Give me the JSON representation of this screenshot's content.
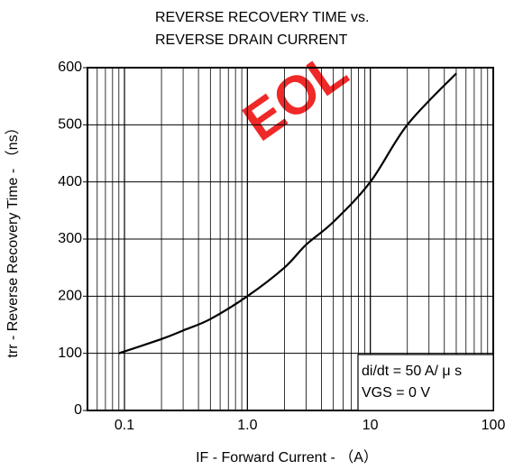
{
  "chart_data": {
    "type": "line",
    "title": "REVERSE RECOVERY TIME vs.",
    "subtitle": "REVERSE DRAIN CURRENT",
    "x_label": "IF - Forward Current - （A）",
    "y_label": "trr - Reverse Recovery Time - （ns）",
    "annotations": [
      "di/dt = 50 A/ μ s",
      "VGS = 0 V"
    ],
    "watermark": "EOL",
    "x": [
      0.09,
      0.2,
      0.3,
      0.5,
      1,
      2,
      3,
      5,
      10,
      20,
      50
    ],
    "series": [
      {
        "name": "trr",
        "color": "#000000",
        "values": [
          100,
          125,
          140,
          160,
          200,
          250,
          290,
          330,
          400,
          500,
          590
        ]
      }
    ],
    "xlog": true,
    "xlim": [
      0.05,
      100
    ],
    "xticks": [
      0.1,
      {
        "value": 1,
        "label": "1.0"
      },
      10,
      100
    ],
    "ylim": [
      0,
      600
    ],
    "yticks": [
      0,
      100,
      200,
      300,
      400,
      500,
      600
    ],
    "grid": true,
    "minor_grid": true
  }
}
